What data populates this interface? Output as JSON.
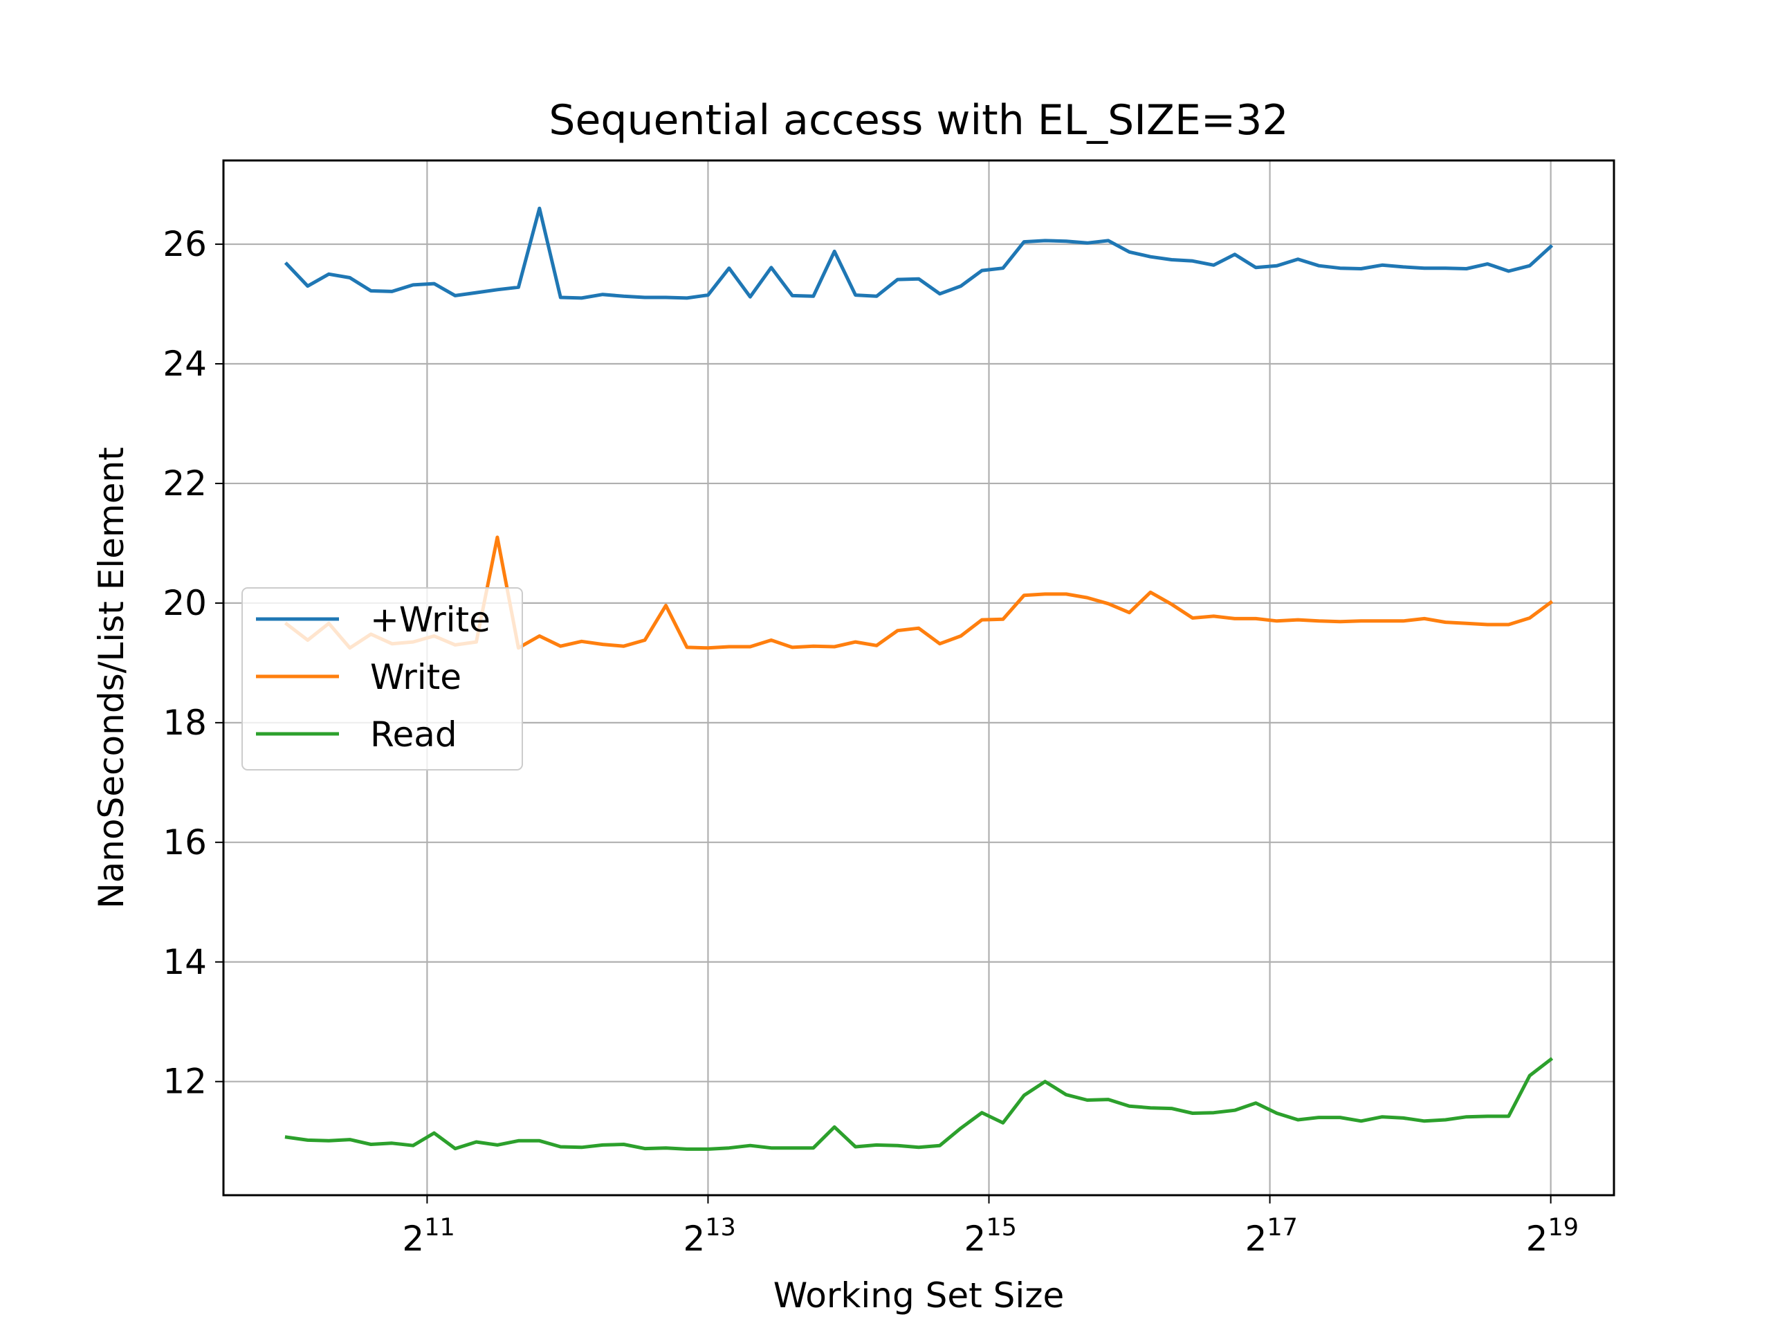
{
  "chart_data": {
    "type": "line",
    "title": "Sequential access with EL_SIZE=32",
    "xlabel": "Working Set Size",
    "ylabel": "NanoSeconds/List Element",
    "x_scale": "log2",
    "xlim_log2": [
      9.55,
      19.45
    ],
    "ylim": [
      10.1,
      27.4
    ],
    "xticks": [
      {
        "base": "2",
        "exp": "11",
        "log2": 11
      },
      {
        "base": "2",
        "exp": "13",
        "log2": 13
      },
      {
        "base": "2",
        "exp": "15",
        "log2": 15
      },
      {
        "base": "2",
        "exp": "17",
        "log2": 17
      },
      {
        "base": "2",
        "exp": "19",
        "log2": 19
      }
    ],
    "yticks": [
      {
        "label": "12",
        "value": 12
      },
      {
        "label": "14",
        "value": 14
      },
      {
        "label": "16",
        "value": 16
      },
      {
        "label": "18",
        "value": 18
      },
      {
        "label": "20",
        "value": 20
      },
      {
        "label": "22",
        "value": 22
      },
      {
        "label": "24",
        "value": 24
      },
      {
        "label": "26",
        "value": 26
      }
    ],
    "grid": true,
    "legend_position": "center-left",
    "x_log2": [
      10.0,
      10.15,
      10.3,
      10.45,
      10.6,
      10.75,
      10.9,
      11.05,
      11.2,
      11.35,
      11.5,
      11.65,
      11.8,
      11.95,
      12.1,
      12.25,
      12.4,
      12.55,
      12.7,
      12.85,
      13.0,
      13.15,
      13.3,
      13.45,
      13.6,
      13.75,
      13.9,
      14.05,
      14.2,
      14.35,
      14.5,
      14.65,
      14.8,
      14.95,
      15.1,
      15.25,
      15.4,
      15.55,
      15.7,
      15.85,
      16.0,
      16.15,
      16.3,
      16.45,
      16.6,
      16.75,
      16.9,
      17.05,
      17.2,
      17.35,
      17.5,
      17.65,
      17.8,
      17.95,
      18.1,
      18.25,
      18.4,
      18.55,
      18.7,
      18.85,
      19.0
    ],
    "series": [
      {
        "name": "+Write",
        "color": "#1f77b4",
        "values": [
          25.67,
          25.3,
          25.5,
          25.44,
          25.22,
          25.21,
          25.32,
          25.34,
          25.14,
          25.19,
          25.24,
          25.28,
          26.6,
          25.11,
          25.1,
          25.16,
          25.13,
          25.11,
          25.11,
          25.1,
          25.15,
          25.6,
          25.12,
          25.61,
          25.14,
          25.13,
          25.88,
          25.15,
          25.13,
          25.41,
          25.42,
          25.17,
          25.3,
          25.56,
          25.6,
          26.04,
          26.06,
          26.05,
          26.02,
          26.06,
          25.87,
          25.79,
          25.74,
          25.72,
          25.65,
          25.83,
          25.61,
          25.64,
          25.75,
          25.64,
          25.6,
          25.59,
          25.65,
          25.62,
          25.6,
          25.6,
          25.59,
          25.67,
          25.55,
          25.64,
          25.96
        ]
      },
      {
        "name": "Write",
        "color": "#ff7f0e",
        "values": [
          19.65,
          19.38,
          19.66,
          19.25,
          19.48,
          19.32,
          19.35,
          19.45,
          19.3,
          19.35,
          21.1,
          19.25,
          19.45,
          19.28,
          19.36,
          19.31,
          19.28,
          19.38,
          19.96,
          19.26,
          19.25,
          19.27,
          19.27,
          19.38,
          19.26,
          19.28,
          19.27,
          19.35,
          19.29,
          19.54,
          19.58,
          19.32,
          19.45,
          19.72,
          19.73,
          20.13,
          20.15,
          20.15,
          20.09,
          19.99,
          19.84,
          20.18,
          19.98,
          19.75,
          19.78,
          19.74,
          19.74,
          19.7,
          19.72,
          19.7,
          19.69,
          19.7,
          19.7,
          19.7,
          19.74,
          19.68,
          19.66,
          19.64,
          19.64,
          19.75,
          20.01
        ]
      },
      {
        "name": "Read",
        "color": "#2ca02c",
        "values": [
          11.07,
          11.02,
          11.01,
          11.03,
          10.95,
          10.97,
          10.93,
          11.14,
          10.88,
          10.99,
          10.94,
          11.01,
          11.01,
          10.91,
          10.9,
          10.94,
          10.95,
          10.88,
          10.89,
          10.87,
          10.87,
          10.89,
          10.93,
          10.89,
          10.89,
          10.89,
          11.24,
          10.91,
          10.94,
          10.93,
          10.9,
          10.93,
          11.22,
          11.48,
          11.31,
          11.77,
          12.0,
          11.78,
          11.69,
          11.7,
          11.59,
          11.56,
          11.55,
          11.47,
          11.48,
          11.52,
          11.64,
          11.47,
          11.36,
          11.4,
          11.4,
          11.34,
          11.41,
          11.39,
          11.34,
          11.36,
          11.41,
          11.42,
          11.42,
          12.1,
          12.37
        ]
      }
    ]
  }
}
